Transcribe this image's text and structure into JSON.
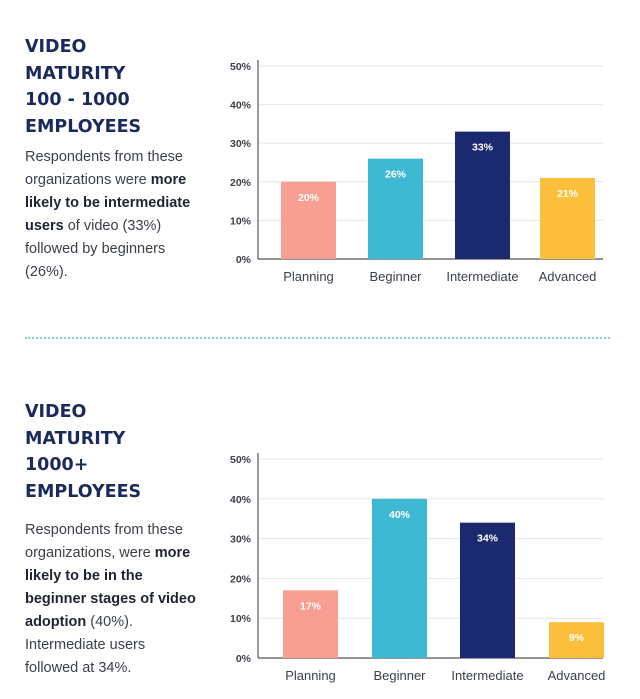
{
  "colors": {
    "heading": "#1b2a5c",
    "Planning": "#f89e93",
    "Beginner": "#3fb8d4",
    "Intermediate": "#1b2a6e",
    "Advanced": "#fbbf3c",
    "grid": "#e6e6e6",
    "axis": "#555555",
    "divider": "#8ec7d9"
  },
  "sections": [
    {
      "heading": [
        "VIDEO",
        "MATURITY",
        "100 - 1000",
        "EMPLOYEES"
      ],
      "description": [
        {
          "text": "Respondents from these organizations were ",
          "bold": false
        },
        {
          "text": "more likely to be intermediate users",
          "bold": true
        },
        {
          "text": " of video (33%) followed by beginners (26%).",
          "bold": false
        }
      ]
    },
    {
      "heading": [
        "VIDEO",
        "MATURITY",
        "1000+",
        "EMPLOYEES"
      ],
      "description": [
        {
          "text": "Respondents from these organizations, were ",
          "bold": false
        },
        {
          "text": "more likely to be in the beginner stages of video adoption",
          "bold": true
        },
        {
          "text": " (40%). Intermediate users followed at 34%.",
          "bold": false
        }
      ]
    }
  ],
  "chart_data": [
    {
      "type": "bar",
      "title": "",
      "xlabel": "",
      "ylabel": "",
      "categories": [
        "Planning",
        "Beginner",
        "Intermediate",
        "Advanced"
      ],
      "values": [
        20,
        26,
        33,
        21
      ],
      "data_labels": [
        "20%",
        "26%",
        "33%",
        "21%"
      ],
      "ylim": [
        0,
        50
      ],
      "yticks": [
        "0%",
        "10%",
        "20%",
        "30%",
        "40%",
        "50%"
      ],
      "grid": true
    },
    {
      "type": "bar",
      "title": "",
      "xlabel": "",
      "ylabel": "",
      "categories": [
        "Planning",
        "Beginner",
        "Intermediate",
        "Advanced"
      ],
      "values": [
        17,
        40,
        34,
        9
      ],
      "data_labels": [
        "17%",
        "40%",
        "34%",
        "9%"
      ],
      "ylim": [
        0,
        50
      ],
      "yticks": [
        "0%",
        "10%",
        "20%",
        "30%",
        "40%",
        "50%"
      ],
      "grid": true
    }
  ]
}
